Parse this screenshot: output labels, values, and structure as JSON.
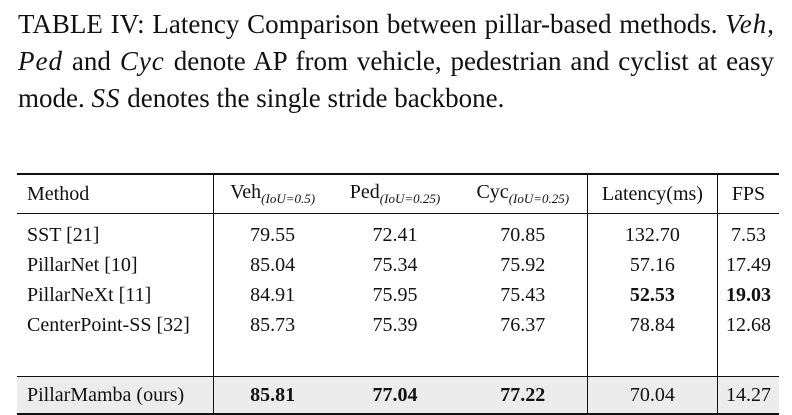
{
  "caption": {
    "label": "TABLE IV:",
    "text_1": "Latency Comparison between pillar-based methods.",
    "veh": "Veh",
    "comma": ",",
    "ped": "Ped",
    "and": "and",
    "cyc": "Cyc",
    "text_2": "denote AP from vehicle, pedestrian and cyclist at easy mode.",
    "ss": "SS",
    "text_3": "denotes the single stride backbone."
  },
  "table": {
    "headers": {
      "method": "Method",
      "veh": "Veh",
      "veh_sub": "(IoU=0.5)",
      "ped": "Ped",
      "ped_sub": "(IoU=0.25)",
      "cyc": "Cyc",
      "cyc_sub": "(IoU=0.25)",
      "latency": "Latency(ms)",
      "fps": "FPS"
    },
    "rows": [
      {
        "method": "SST [21]",
        "veh": "79.55",
        "ped": "72.41",
        "cyc": "70.85",
        "latency": "132.70",
        "fps": "7.53"
      },
      {
        "method": "PillarNet [10]",
        "veh": "85.04",
        "ped": "75.34",
        "cyc": "75.92",
        "latency": "57.16",
        "fps": "17.49"
      },
      {
        "method": "PillarNeXt [11]",
        "veh": "84.91",
        "ped": "75.95",
        "cyc": "75.43",
        "latency": "52.53",
        "fps": "19.03"
      },
      {
        "method": "CenterPoint-SS [32]",
        "veh": "85.73",
        "ped": "75.39",
        "cyc": "76.37",
        "latency": "78.84",
        "fps": "12.68"
      }
    ],
    "ours": {
      "method": "PillarMamba (ours)",
      "veh": "85.81",
      "ped": "77.04",
      "cyc": "77.22",
      "latency": "70.04",
      "fps": "14.27"
    },
    "highlight_background": "#ececec"
  }
}
